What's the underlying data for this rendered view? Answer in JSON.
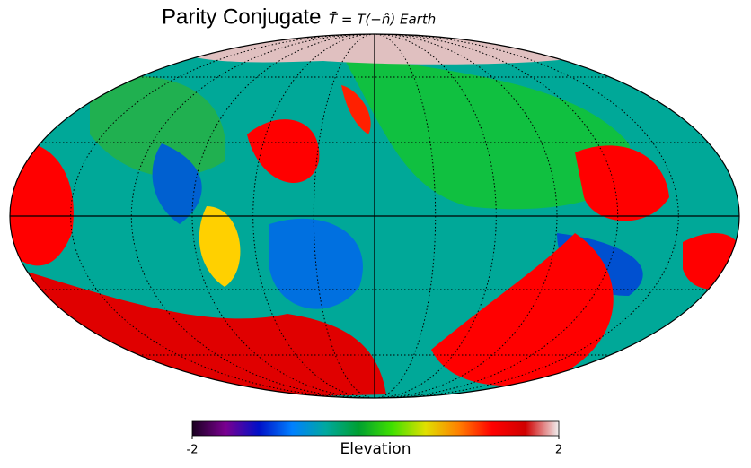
{
  "title": "Parity Conjugate",
  "subtitle": "T̄ = T(−n̂)  Earth",
  "colorbar": {
    "label": "Elevation",
    "lim": [
      -2,
      2
    ],
    "ticks": [
      -2,
      2
    ],
    "colors": [
      "#1a0020",
      "#7a0090",
      "#0010c8",
      "#0080ff",
      "#00a8a0",
      "#00a030",
      "#40e000",
      "#e0e000",
      "#ff8000",
      "#ff0000",
      "#d00000",
      "#f0f0f0"
    ]
  }
}
